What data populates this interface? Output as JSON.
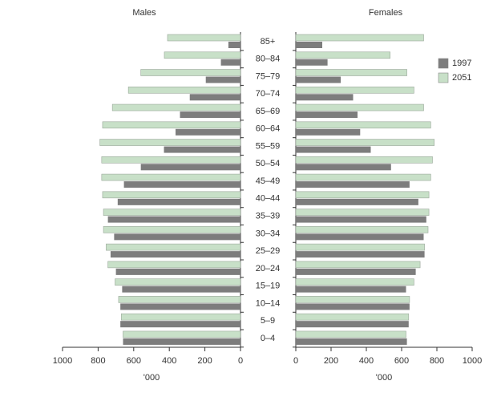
{
  "chart_data": {
    "type": "pyramid",
    "categories": [
      "85+",
      "80–84",
      "75–79",
      "70–74",
      "65–69",
      "60–64",
      "55–59",
      "50–54",
      "45–49",
      "40–44",
      "35–39",
      "30–34",
      "25–29",
      "20–24",
      "15–19",
      "10–14",
      "5–9",
      "0–4"
    ],
    "left": {
      "title": "Males",
      "xlim": [
        1000,
        0
      ],
      "xticks": [
        1000,
        800,
        600,
        400,
        200,
        0
      ],
      "xlabel": "'000"
    },
    "right": {
      "title": "Females",
      "xlim": [
        0,
        1000
      ],
      "xticks": [
        0,
        200,
        400,
        600,
        800,
        1000
      ],
      "xlabel": "'000"
    },
    "series": [
      {
        "name": "1997",
        "color": "#7d7d7d",
        "males": [
          68,
          110,
          195,
          285,
          340,
          365,
          430,
          560,
          655,
          690,
          745,
          710,
          730,
          700,
          665,
          675,
          675,
          660
        ],
        "females": [
          150,
          180,
          255,
          325,
          350,
          365,
          425,
          540,
          645,
          695,
          740,
          725,
          730,
          680,
          625,
          645,
          640,
          630
        ]
      },
      {
        "name": "2051",
        "color": "#c8e0c8",
        "males": [
          410,
          428,
          560,
          630,
          720,
          775,
          790,
          780,
          780,
          775,
          770,
          770,
          755,
          745,
          705,
          685,
          670,
          660
        ],
        "females": [
          725,
          535,
          630,
          670,
          725,
          765,
          785,
          775,
          765,
          755,
          755,
          750,
          730,
          705,
          670,
          645,
          640,
          625
        ]
      }
    ]
  }
}
